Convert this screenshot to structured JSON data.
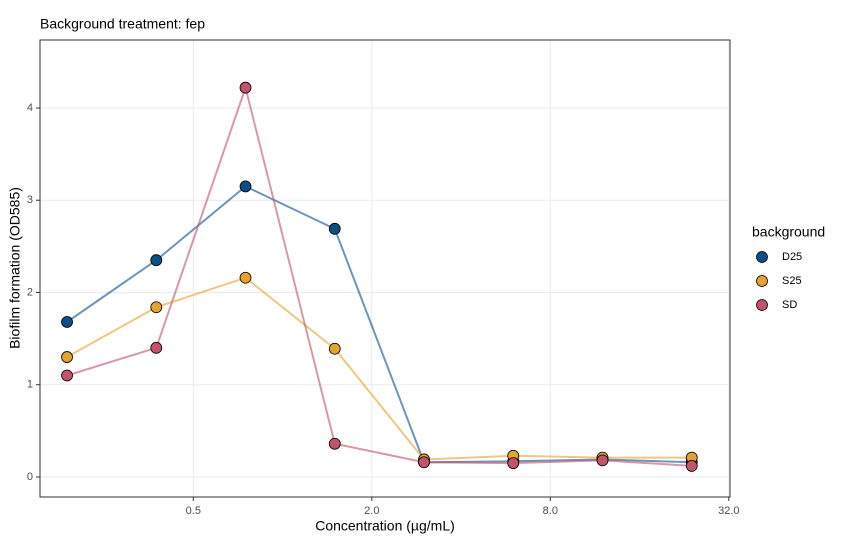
{
  "chart_data": {
    "type": "line",
    "title": "Background treatment: fep",
    "x_label": "Concentration (µg/mL)",
    "y_label": "Biofilm formation (OD585)",
    "x": [
      0.1875,
      0.375,
      0.75,
      1.5,
      3,
      6,
      12,
      24
    ],
    "xscale": "log2",
    "xlim": [
      0.152,
      32.3
    ],
    "xticks": [
      0.5,
      {
        "value": 2,
        "label": "2.0"
      },
      {
        "value": 8,
        "label": "8.0"
      },
      {
        "value": 32,
        "label": "32.0"
      }
    ],
    "ylim": [
      -0.217,
      4.737
    ],
    "yticks": [
      0,
      1,
      2,
      3,
      4
    ],
    "grid": true,
    "legend_title": "background",
    "legend_position": "right",
    "series": [
      {
        "name": "D25",
        "color": "#0b4f8a",
        "values": [
          1.68,
          2.35,
          3.15,
          2.69,
          0.16,
          0.17,
          0.19,
          0.16
        ]
      },
      {
        "name": "S25",
        "color": "#e3a32e",
        "values": [
          1.3,
          1.84,
          2.16,
          1.39,
          0.19,
          0.23,
          0.21,
          0.21
        ]
      },
      {
        "name": "SD",
        "color": "#c2536a",
        "values": [
          1.1,
          1.4,
          4.22,
          0.36,
          0.16,
          0.15,
          0.18,
          0.12
        ]
      }
    ]
  }
}
